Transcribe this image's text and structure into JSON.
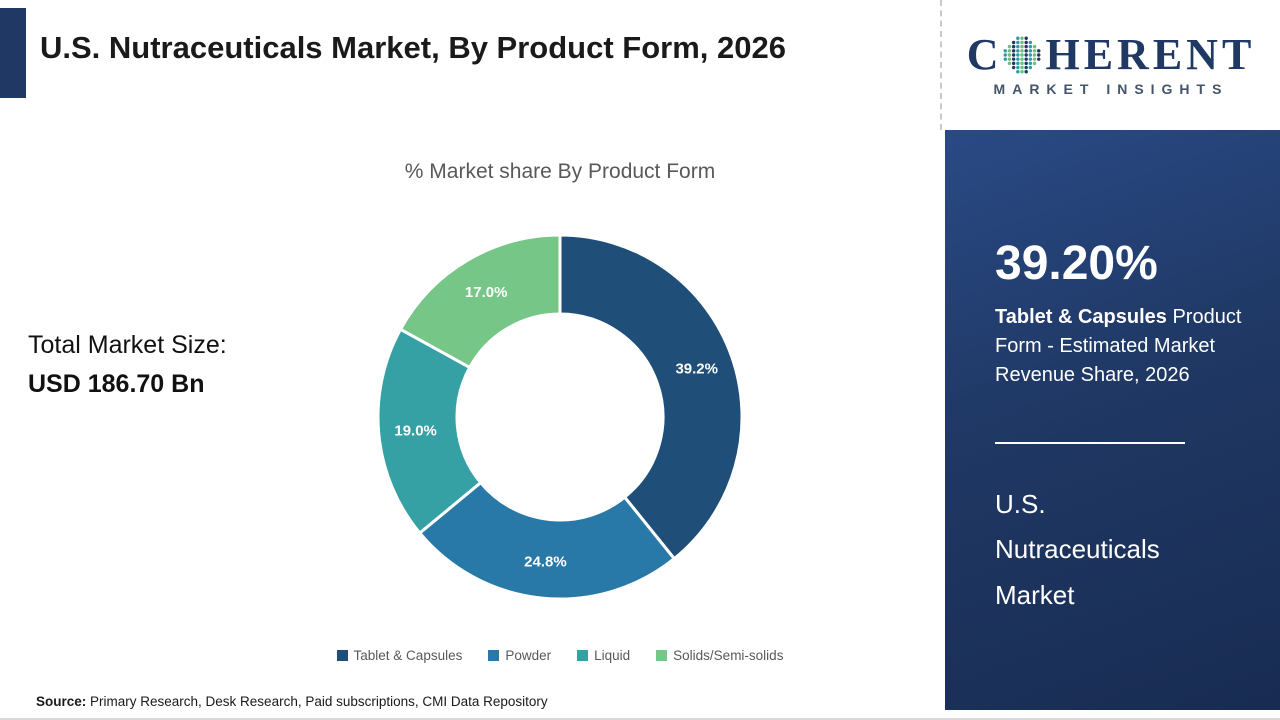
{
  "header": {
    "title": "U.S. Nutraceuticals Market, By Product Form, 2026"
  },
  "logo": {
    "letter_c": "C",
    "letters_rest": "HERENT",
    "subtitle": "MARKET INSIGHTS",
    "navy": "#1F3864",
    "dot_colors": [
      "#2E9CA6",
      "#6FBE7E",
      "#203864"
    ]
  },
  "main": {
    "chart_title": "% Market share By Product Form",
    "total_label": "Total Market Size:",
    "total_value": "USD 186.70 Bn"
  },
  "chart_data": {
    "type": "pie",
    "donut": true,
    "title": "% Market share By Product Form",
    "categories": [
      "Tablet & Capsules",
      "Powder",
      "Liquid",
      "Solids/Semi-solids"
    ],
    "values": [
      39.2,
      24.8,
      19.0,
      17.0
    ],
    "labels": [
      "39.2%",
      "24.8%",
      "19.0%",
      "17.0%"
    ],
    "colors": [
      "#1F4E79",
      "#2878A8",
      "#35A1A4",
      "#76C687"
    ],
    "start_angle_deg": 0,
    "direction": "clockwise",
    "legend_position": "bottom"
  },
  "sidebar": {
    "stat_value": "39.20%",
    "stat_desc_bold": "Tablet & Capsules",
    "stat_desc_rest": " Product Form - Estimated Market Revenue Share, 2026",
    "market_name_lines": [
      "U.S.",
      "Nutraceuticals",
      "Market"
    ],
    "bg_color": "#1F3864"
  },
  "footer": {
    "source_label": "Source:",
    "source_text": " Primary Research, Desk Research, Paid subscriptions, CMI Data Repository"
  }
}
